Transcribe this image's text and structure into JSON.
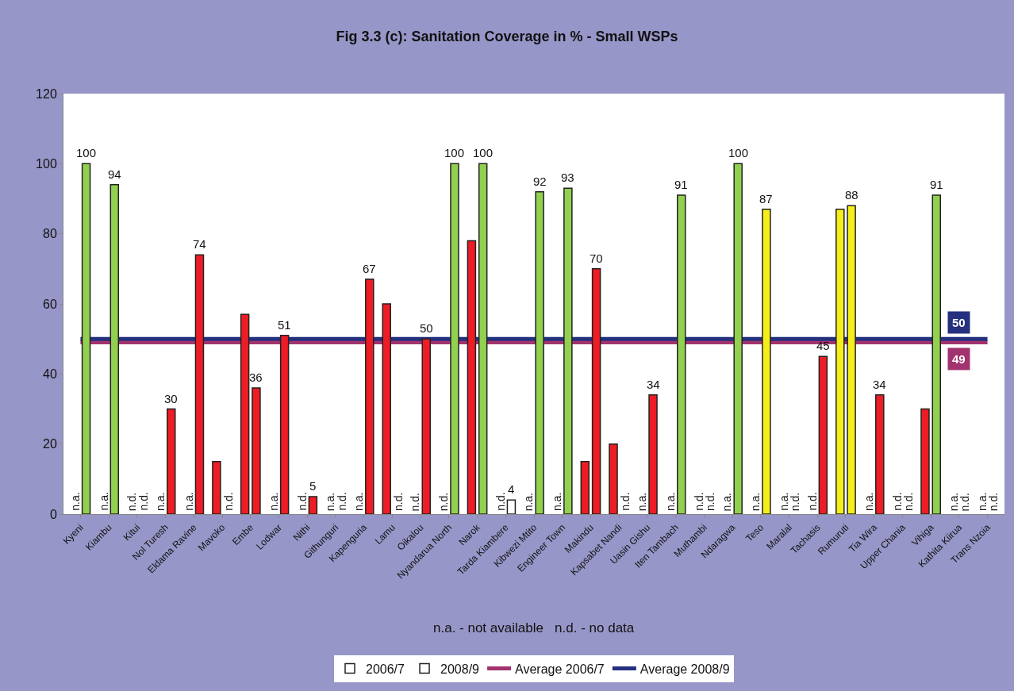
{
  "chart_data": {
    "type": "bar",
    "title": "Fig 3.3 (c): Sanitation Coverage in % - Small WSPs",
    "annotations": [
      "n.a. - not available   n.d. - no data"
    ],
    "categories": [
      "Kyeni",
      "Kiambu",
      "Kitui",
      "Nol Turesh",
      "Eldama Ravine",
      "Mavoko",
      "Embe",
      "Lodwar",
      "Nithi",
      "Githunguri",
      "Kapenguria",
      "Lamu",
      "Oikalou",
      "Nyandarua North",
      "Narok",
      "Tarda Kiambere",
      "Kibwezi Mtito",
      "Engineer Town",
      "Makindu",
      "Kapsabet Nandi",
      "Uasin Gishu",
      "Iten Tambach",
      "Muthambi",
      "Ndaragwa",
      "Teso",
      "Maralal",
      "Tachasis",
      "Rumuruti",
      "Tia Wira",
      "Upper Chania",
      "Vihiga",
      "Kathita Kiirua",
      "Trans Nzoia"
    ],
    "series": [
      {
        "name": "2006/7",
        "color": "#ffffff",
        "values": [
          null,
          null,
          null,
          null,
          null,
          15,
          57,
          null,
          null,
          null,
          null,
          60,
          null,
          null,
          78,
          null,
          null,
          null,
          15,
          20,
          null,
          null,
          null,
          null,
          null,
          null,
          null,
          87,
          null,
          null,
          30,
          null,
          null
        ],
        "colors": [
          null,
          null,
          null,
          null,
          null,
          "#ee1c25",
          "#ee1c25",
          null,
          null,
          null,
          null,
          "#ee1c25",
          null,
          null,
          "#ee1c25",
          null,
          null,
          null,
          "#ee1c25",
          "#ee1c25",
          null,
          null,
          null,
          null,
          null,
          null,
          null,
          "#f5ee1b",
          null,
          null,
          "#ee1c25",
          null,
          null
        ],
        "value_labels": [
          "n.a.",
          "n.a.",
          "n.d.",
          "n.a.",
          "n.a.",
          null,
          null,
          "n.a.",
          "n.d.",
          "n.a.",
          "n.a.",
          null,
          "n.d.",
          "n.d.",
          null,
          "n.d.",
          "n.a.",
          "n.a.",
          null,
          null,
          "n.a.",
          "n.a.",
          "n.d.",
          "n.a.",
          "n.a.",
          "n.a.",
          "n.d.",
          null,
          "n.a.",
          "n.d.",
          null,
          "n.a.",
          "n.a."
        ]
      },
      {
        "name": "2008/9",
        "color": "#ffffff",
        "values": [
          100,
          94,
          null,
          30,
          74,
          null,
          36,
          51,
          5,
          null,
          67,
          null,
          50,
          100,
          100,
          4,
          92,
          93,
          70,
          null,
          34,
          91,
          null,
          100,
          87,
          null,
          45,
          88,
          34,
          null,
          91,
          null,
          null
        ],
        "colors": [
          "#92d050",
          "#92d050",
          null,
          "#ee1c25",
          "#ee1c25",
          null,
          "#ee1c25",
          "#ee1c25",
          "#ee1c25",
          null,
          "#ee1c25",
          null,
          "#ee1c25",
          "#92d050",
          "#92d050",
          "#ffffff",
          "#92d050",
          "#92d050",
          "#ee1c25",
          null,
          "#ee1c25",
          "#92d050",
          null,
          "#92d050",
          "#f5ee1b",
          null,
          "#ee1c25",
          "#f5ee1b",
          "#ee1c25",
          null,
          "#92d050",
          null,
          null
        ],
        "value_labels": [
          "100",
          "94",
          "n.d.",
          "30",
          "74",
          "n.d.",
          "36",
          "51",
          "5",
          "n.d.",
          "67",
          "n.d.",
          "50",
          "100",
          "100",
          "4",
          "92",
          "93",
          "70",
          "n.d.",
          "34",
          "91",
          "n.d.",
          "100",
          "87",
          "n.d.",
          "45",
          "88",
          "34",
          "n.d.",
          "91",
          "n.d.",
          "n.d."
        ]
      },
      {
        "name": "Average 2006/7",
        "type": "line",
        "color": "#a3336f",
        "values": [
          49,
          49,
          49,
          49,
          49,
          49,
          49,
          49,
          49,
          49,
          49,
          49,
          49,
          49,
          49,
          49,
          49,
          49,
          49,
          49,
          49,
          49,
          49,
          49,
          49,
          49,
          49,
          49,
          49,
          49,
          49,
          49,
          49
        ],
        "value_labels": [
          null,
          null,
          null,
          null,
          null,
          null,
          null,
          null,
          null,
          null,
          null,
          null,
          null,
          null,
          null,
          null,
          null,
          null,
          null,
          null,
          null,
          null,
          null,
          null,
          null,
          null,
          null,
          null,
          null,
          null,
          null,
          "49",
          null
        ]
      },
      {
        "name": "Average 2008/9",
        "type": "line",
        "color": "#25307e",
        "values": [
          50,
          50,
          50,
          50,
          50,
          50,
          50,
          50,
          50,
          50,
          50,
          50,
          50,
          50,
          50,
          50,
          50,
          50,
          50,
          50,
          50,
          50,
          50,
          50,
          50,
          50,
          50,
          50,
          50,
          50,
          50,
          50,
          50
        ],
        "value_labels": [
          null,
          null,
          null,
          null,
          null,
          null,
          null,
          null,
          null,
          null,
          null,
          null,
          null,
          null,
          null,
          null,
          null,
          null,
          null,
          null,
          null,
          null,
          null,
          null,
          null,
          null,
          null,
          null,
          null,
          null,
          null,
          "50",
          null
        ]
      }
    ],
    "ylim": [
      0,
      120
    ],
    "yticks": [
      0,
      20,
      40,
      60,
      80,
      100,
      120
    ],
    "grid": false,
    "legend": "bottom"
  }
}
